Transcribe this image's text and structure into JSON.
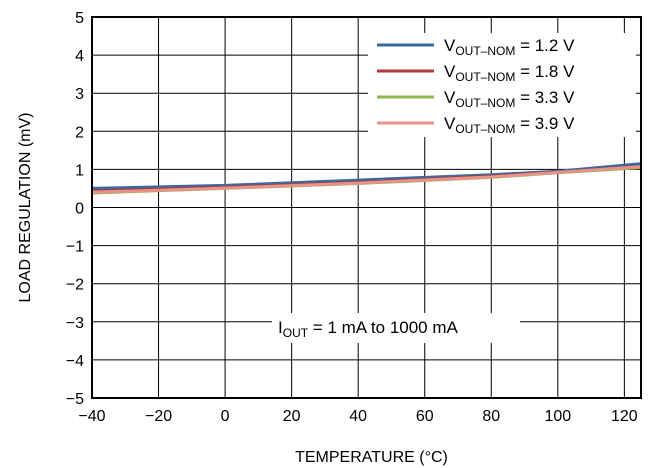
{
  "chart_data": {
    "type": "line",
    "title": "",
    "xlabel": "TEMPERATURE (°C)",
    "ylabel": "LOAD REGULATION (mV)",
    "xlim": [
      -40,
      125
    ],
    "ylim": [
      -5,
      5
    ],
    "xticks": [
      -40,
      -20,
      0,
      20,
      40,
      60,
      80,
      100,
      120
    ],
    "yticks": [
      5,
      4,
      3,
      2,
      1,
      0,
      -1,
      -2,
      -3,
      -4,
      -5
    ],
    "grid": true,
    "legend_position": "top-right",
    "annotation": {
      "main": "I",
      "sub": "OUT",
      "rest": " = 1 mA to 1000 mA"
    },
    "series": [
      {
        "name": "V",
        "name_sub": "OUT–NOM",
        "name_rest": " = 1.2 V",
        "color": "#3b6a9c",
        "x": [
          -40,
          0,
          40,
          80,
          100,
          125
        ],
        "y": [
          0.5,
          0.58,
          0.72,
          0.86,
          0.95,
          1.15
        ]
      },
      {
        "name": "V",
        "name_sub": "OUT–NOM",
        "name_rest": " = 1.8 V",
        "color": "#b33a3a",
        "x": [
          -40,
          0,
          40,
          80,
          100,
          125
        ],
        "y": [
          0.43,
          0.53,
          0.66,
          0.82,
          0.93,
          1.08
        ]
      },
      {
        "name": "V",
        "name_sub": "OUT–NOM",
        "name_rest": " = 3.3 V",
        "color": "#8fb84a",
        "x": [
          -40,
          0,
          40,
          80,
          100,
          125
        ],
        "y": [
          0.38,
          0.5,
          0.63,
          0.79,
          0.91,
          1.05
        ]
      },
      {
        "name": "V",
        "name_sub": "OUT–NOM",
        "name_rest": " = 3.9 V",
        "color": "#e8928a",
        "x": [
          -40,
          0,
          40,
          80,
          100,
          125
        ],
        "y": [
          0.4,
          0.51,
          0.64,
          0.8,
          0.92,
          1.07
        ]
      }
    ]
  }
}
